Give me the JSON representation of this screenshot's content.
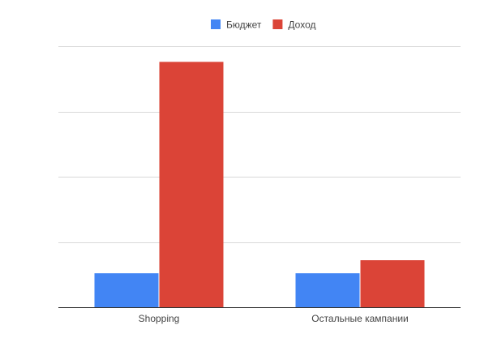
{
  "chart_data": {
    "type": "bar",
    "categories": [
      "Shopping",
      "Остальные кампании"
    ],
    "series": [
      {
        "name": "Бюджет",
        "color": "#4285f4",
        "values": [
          13,
          13
        ]
      },
      {
        "name": "Доход",
        "color": "#db4437",
        "values": [
          94,
          18
        ]
      }
    ],
    "ylim": [
      0,
      100
    ],
    "grid": true,
    "y_tick_labels_visible": false,
    "legend_position": "top"
  }
}
